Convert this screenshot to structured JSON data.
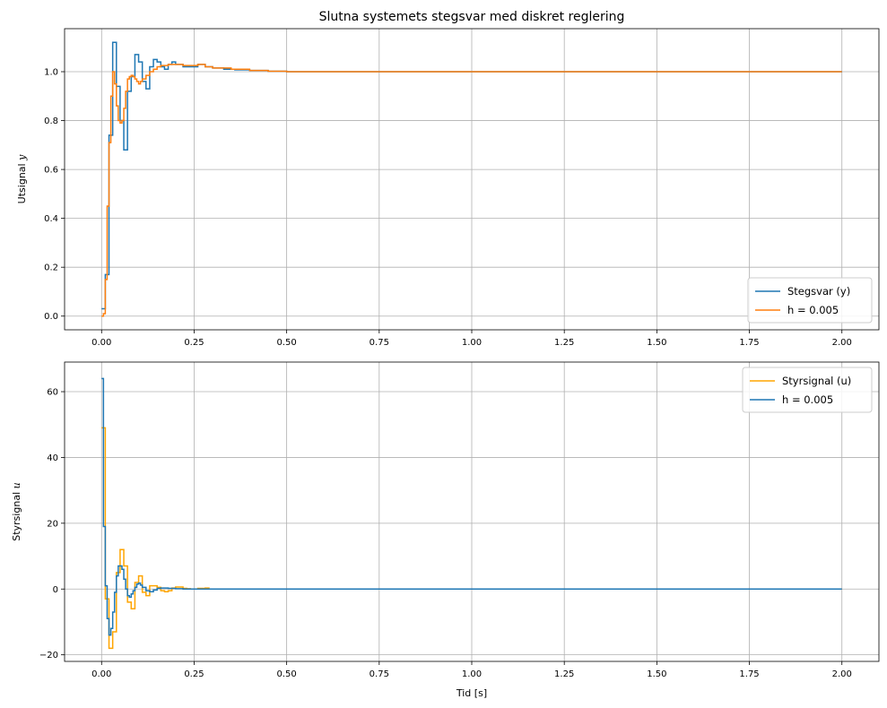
{
  "chart_data": [
    {
      "type": "line",
      "step": "post",
      "title": "Slutna systemets stegsvar med diskret reglering",
      "xlabel": "",
      "ylabel": "Utsignal",
      "ylabel_symbol": "y",
      "xlim": [
        -0.1,
        2.1
      ],
      "ylim": [
        -0.056,
        1.176
      ],
      "xticks": [
        0.0,
        0.25,
        0.5,
        0.75,
        1.0,
        1.25,
        1.5,
        1.75,
        2.0
      ],
      "xtick_labels": [
        "0.00",
        "0.25",
        "0.50",
        "0.75",
        "1.00",
        "1.25",
        "1.50",
        "1.75",
        "2.00"
      ],
      "yticks": [
        0.0,
        0.2,
        0.4,
        0.6,
        0.8,
        1.0
      ],
      "ytick_labels": [
        "0.0",
        "0.2",
        "0.4",
        "0.6",
        "0.8",
        "1.0"
      ],
      "grid": true,
      "legend": "lower right",
      "series": [
        {
          "name": "Stegsvar (y)",
          "color": "#1f77b4",
          "x": [
            0,
            0.01,
            0.02,
            0.03,
            0.04,
            0.05,
            0.06,
            0.07,
            0.08,
            0.09,
            0.1,
            0.11,
            0.12,
            0.13,
            0.14,
            0.15,
            0.16,
            0.17,
            0.18,
            0.19,
            0.2,
            0.22,
            0.24,
            0.26,
            0.28,
            0.3,
            0.33,
            0.36,
            0.4,
            0.45,
            0.5,
            2.0
          ],
          "y": [
            0.03,
            0.17,
            0.74,
            1.12,
            0.94,
            0.8,
            0.68,
            0.92,
            0.98,
            1.07,
            1.04,
            0.96,
            0.93,
            1.02,
            1.05,
            1.04,
            1.02,
            1.01,
            1.03,
            1.04,
            1.03,
            1.02,
            1.02,
            1.03,
            1.02,
            1.015,
            1.01,
            1.008,
            1.005,
            1.002,
            1.0,
            1.0
          ]
        },
        {
          "name": "h = 0.005",
          "color": "#ff7f0e",
          "x": [
            0,
            0.005,
            0.01,
            0.015,
            0.02,
            0.025,
            0.03,
            0.035,
            0.04,
            0.045,
            0.05,
            0.055,
            0.06,
            0.065,
            0.07,
            0.075,
            0.08,
            0.085,
            0.09,
            0.095,
            0.1,
            0.105,
            0.11,
            0.12,
            0.13,
            0.14,
            0.15,
            0.16,
            0.18,
            0.2,
            0.22,
            0.24,
            0.26,
            0.28,
            0.3,
            0.35,
            0.4,
            0.45,
            0.5,
            2.0
          ],
          "y": [
            0.0,
            0.01,
            0.15,
            0.45,
            0.71,
            0.9,
            1.0,
            0.95,
            0.86,
            0.8,
            0.79,
            0.8,
            0.85,
            0.92,
            0.97,
            0.98,
            0.985,
            0.98,
            0.97,
            0.96,
            0.95,
            0.96,
            0.97,
            0.985,
            1.0,
            1.01,
            1.02,
            1.025,
            1.03,
            1.03,
            1.025,
            1.025,
            1.03,
            1.02,
            1.015,
            1.01,
            1.005,
            1.002,
            1.0,
            1.0
          ]
        }
      ]
    },
    {
      "type": "line",
      "step": "post",
      "title": "",
      "xlabel": "Tid [s]",
      "ylabel": "Styrsignal",
      "ylabel_symbol": "u",
      "xlim": [
        -0.1,
        2.1
      ],
      "ylim": [
        -22,
        69
      ],
      "xticks": [
        0.0,
        0.25,
        0.5,
        0.75,
        1.0,
        1.25,
        1.5,
        1.75,
        2.0
      ],
      "xtick_labels": [
        "0.00",
        "0.25",
        "0.50",
        "0.75",
        "1.00",
        "1.25",
        "1.50",
        "1.75",
        "2.00"
      ],
      "yticks": [
        -20,
        0,
        20,
        40,
        60
      ],
      "ytick_labels": [
        "−20",
        "0",
        "20",
        "40",
        "60"
      ],
      "grid": true,
      "legend": "upper right",
      "series": [
        {
          "name": "Styrsignal (u)",
          "color": "#ffa500",
          "x": [
            0,
            0.01,
            0.02,
            0.03,
            0.04,
            0.05,
            0.06,
            0.07,
            0.08,
            0.09,
            0.1,
            0.11,
            0.12,
            0.13,
            0.14,
            0.15,
            0.16,
            0.17,
            0.18,
            0.19,
            0.2,
            0.21,
            0.22,
            0.23,
            0.24,
            0.26,
            0.28,
            0.29,
            2.0
          ],
          "y": [
            49,
            -3,
            -18,
            -13,
            5,
            12,
            7,
            -4,
            -6,
            2,
            4,
            -1,
            -2,
            1,
            1,
            0.5,
            -0.5,
            -0.8,
            -0.5,
            0.3,
            0.6,
            0.6,
            0.2,
            0.1,
            0.0,
            0.2,
            0.3,
            0.0,
            0.0
          ]
        },
        {
          "name": "h = 0.005",
          "color": "#1f77b4",
          "x": [
            0,
            0.005,
            0.01,
            0.015,
            0.02,
            0.025,
            0.03,
            0.035,
            0.04,
            0.045,
            0.05,
            0.055,
            0.06,
            0.065,
            0.07,
            0.075,
            0.08,
            0.085,
            0.09,
            0.095,
            0.1,
            0.105,
            0.11,
            0.12,
            0.13,
            0.14,
            0.15,
            0.16,
            0.18,
            0.2,
            0.22,
            0.24,
            0.26,
            0.3,
            2.0
          ],
          "y": [
            64,
            19,
            1,
            -9,
            -14,
            -12,
            -7,
            -1,
            4,
            7,
            7,
            6,
            3,
            0,
            -2,
            -2.5,
            -1.5,
            -0.5,
            0.5,
            1.5,
            1.8,
            1.2,
            0.5,
            -0.5,
            -0.8,
            -0.3,
            0.2,
            0.3,
            0.2,
            0.1,
            0.0,
            0.0,
            0.0,
            0.0,
            0.0
          ]
        }
      ]
    }
  ]
}
